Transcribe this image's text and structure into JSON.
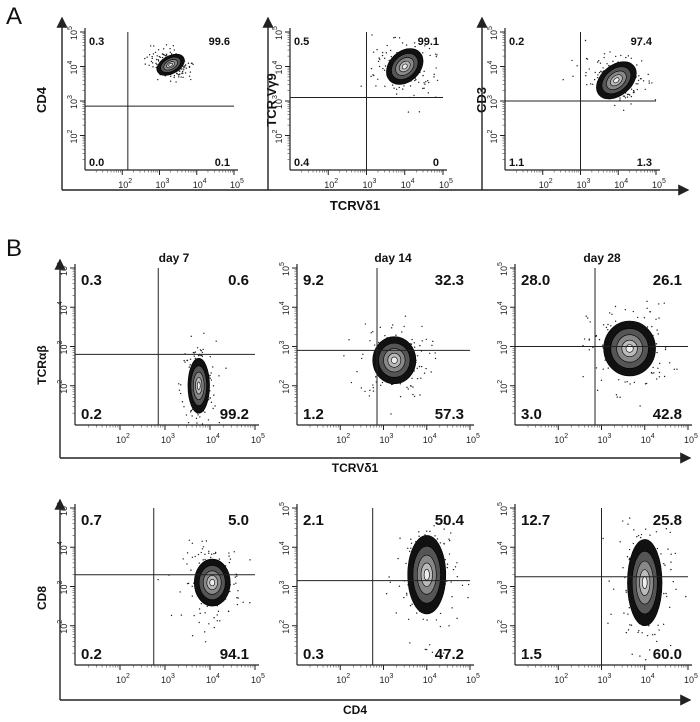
{
  "figure": {
    "panel_a_letter": "A",
    "panel_b_letter": "B"
  },
  "axis_labels": {
    "a_y1": "CD4",
    "a_y2": "TCR Vγ9",
    "a_y3": "CD3",
    "a_x": "TCRVδ1",
    "b1_y": "TCRαβ",
    "b1_x": "TCRVδ1",
    "b2_y": "CD8",
    "b2_x": "CD4"
  },
  "days": [
    "day 7",
    "day 14",
    "day 28"
  ],
  "chart_data": [
    {
      "type": "scatter",
      "panel": "A-1",
      "xlabel": "TCRVδ1",
      "ylabel": "CD4",
      "xlim": [
        10,
        100000
      ],
      "ylim": [
        10,
        100000
      ],
      "log_axes": true,
      "quadrant_percent": {
        "upper_left": "0.3",
        "upper_right": "99.6",
        "lower_left": "0.0",
        "lower_right": "0.1"
      }
    },
    {
      "type": "scatter",
      "panel": "A-2",
      "xlabel": "TCRVδ1",
      "ylabel": "TCR Vγ9",
      "xlim": [
        10,
        100000
      ],
      "ylim": [
        10,
        100000
      ],
      "log_axes": true,
      "quadrant_percent": {
        "upper_left": "0.5",
        "upper_right": "99.1",
        "lower_left": "0.4",
        "lower_right": "0"
      }
    },
    {
      "type": "scatter",
      "panel": "A-3",
      "xlabel": "TCRVδ1",
      "ylabel": "CD3",
      "xlim": [
        10,
        100000
      ],
      "ylim": [
        10,
        100000
      ],
      "log_axes": true,
      "quadrant_percent": {
        "upper_left": "0.2",
        "upper_right": "97.4",
        "lower_left": "1.1",
        "lower_right": "1.3"
      }
    },
    {
      "type": "scatter",
      "panel": "B-day 7",
      "xlabel": "TCRVδ1",
      "ylabel": "TCRαβ",
      "xlim": [
        10,
        100000
      ],
      "ylim": [
        10,
        100000
      ],
      "log_axes": true,
      "quadrant_percent": {
        "upper_left": "0.3",
        "upper_right": "0.6",
        "lower_left": "0.2",
        "lower_right": "99.2"
      }
    },
    {
      "type": "scatter",
      "panel": "B-day 14",
      "xlabel": "TCRVδ1",
      "ylabel": "TCRαβ",
      "xlim": [
        10,
        100000
      ],
      "ylim": [
        10,
        100000
      ],
      "log_axes": true,
      "quadrant_percent": {
        "upper_left": "9.2",
        "upper_right": "32.3",
        "lower_left": "1.2",
        "lower_right": "57.3"
      }
    },
    {
      "type": "scatter",
      "panel": "B-day 28",
      "xlabel": "TCRVδ1",
      "ylabel": "TCRαβ",
      "xlim": [
        10,
        100000
      ],
      "ylim": [
        10,
        100000
      ],
      "log_axes": true,
      "quadrant_percent": {
        "upper_left": "28.0",
        "upper_right": "26.1",
        "lower_left": "3.0",
        "lower_right": "42.8"
      }
    },
    {
      "type": "scatter",
      "panel": "B-CD4/CD8 day 7",
      "xlabel": "CD4",
      "ylabel": "CD8",
      "xlim": [
        10,
        100000
      ],
      "ylim": [
        10,
        100000
      ],
      "log_axes": true,
      "quadrant_percent": {
        "upper_left": "0.7",
        "upper_right": "5.0",
        "lower_left": "0.2",
        "lower_right": "94.1"
      }
    },
    {
      "type": "scatter",
      "panel": "B-CD4/CD8 day 14",
      "xlabel": "CD4",
      "ylabel": "CD8",
      "xlim": [
        10,
        100000
      ],
      "ylim": [
        10,
        100000
      ],
      "log_axes": true,
      "quadrant_percent": {
        "upper_left": "2.1",
        "upper_right": "50.4",
        "lower_left": "0.3",
        "lower_right": "47.2"
      }
    },
    {
      "type": "scatter",
      "panel": "B-CD4/CD8 day 28",
      "xlabel": "CD4",
      "ylabel": "CD8",
      "xlim": [
        10,
        100000
      ],
      "ylim": [
        10,
        100000
      ],
      "log_axes": true,
      "quadrant_percent": {
        "upper_left": "12.7",
        "upper_right": "25.8",
        "lower_left": "1.5",
        "lower_right": "60.0"
      }
    }
  ]
}
